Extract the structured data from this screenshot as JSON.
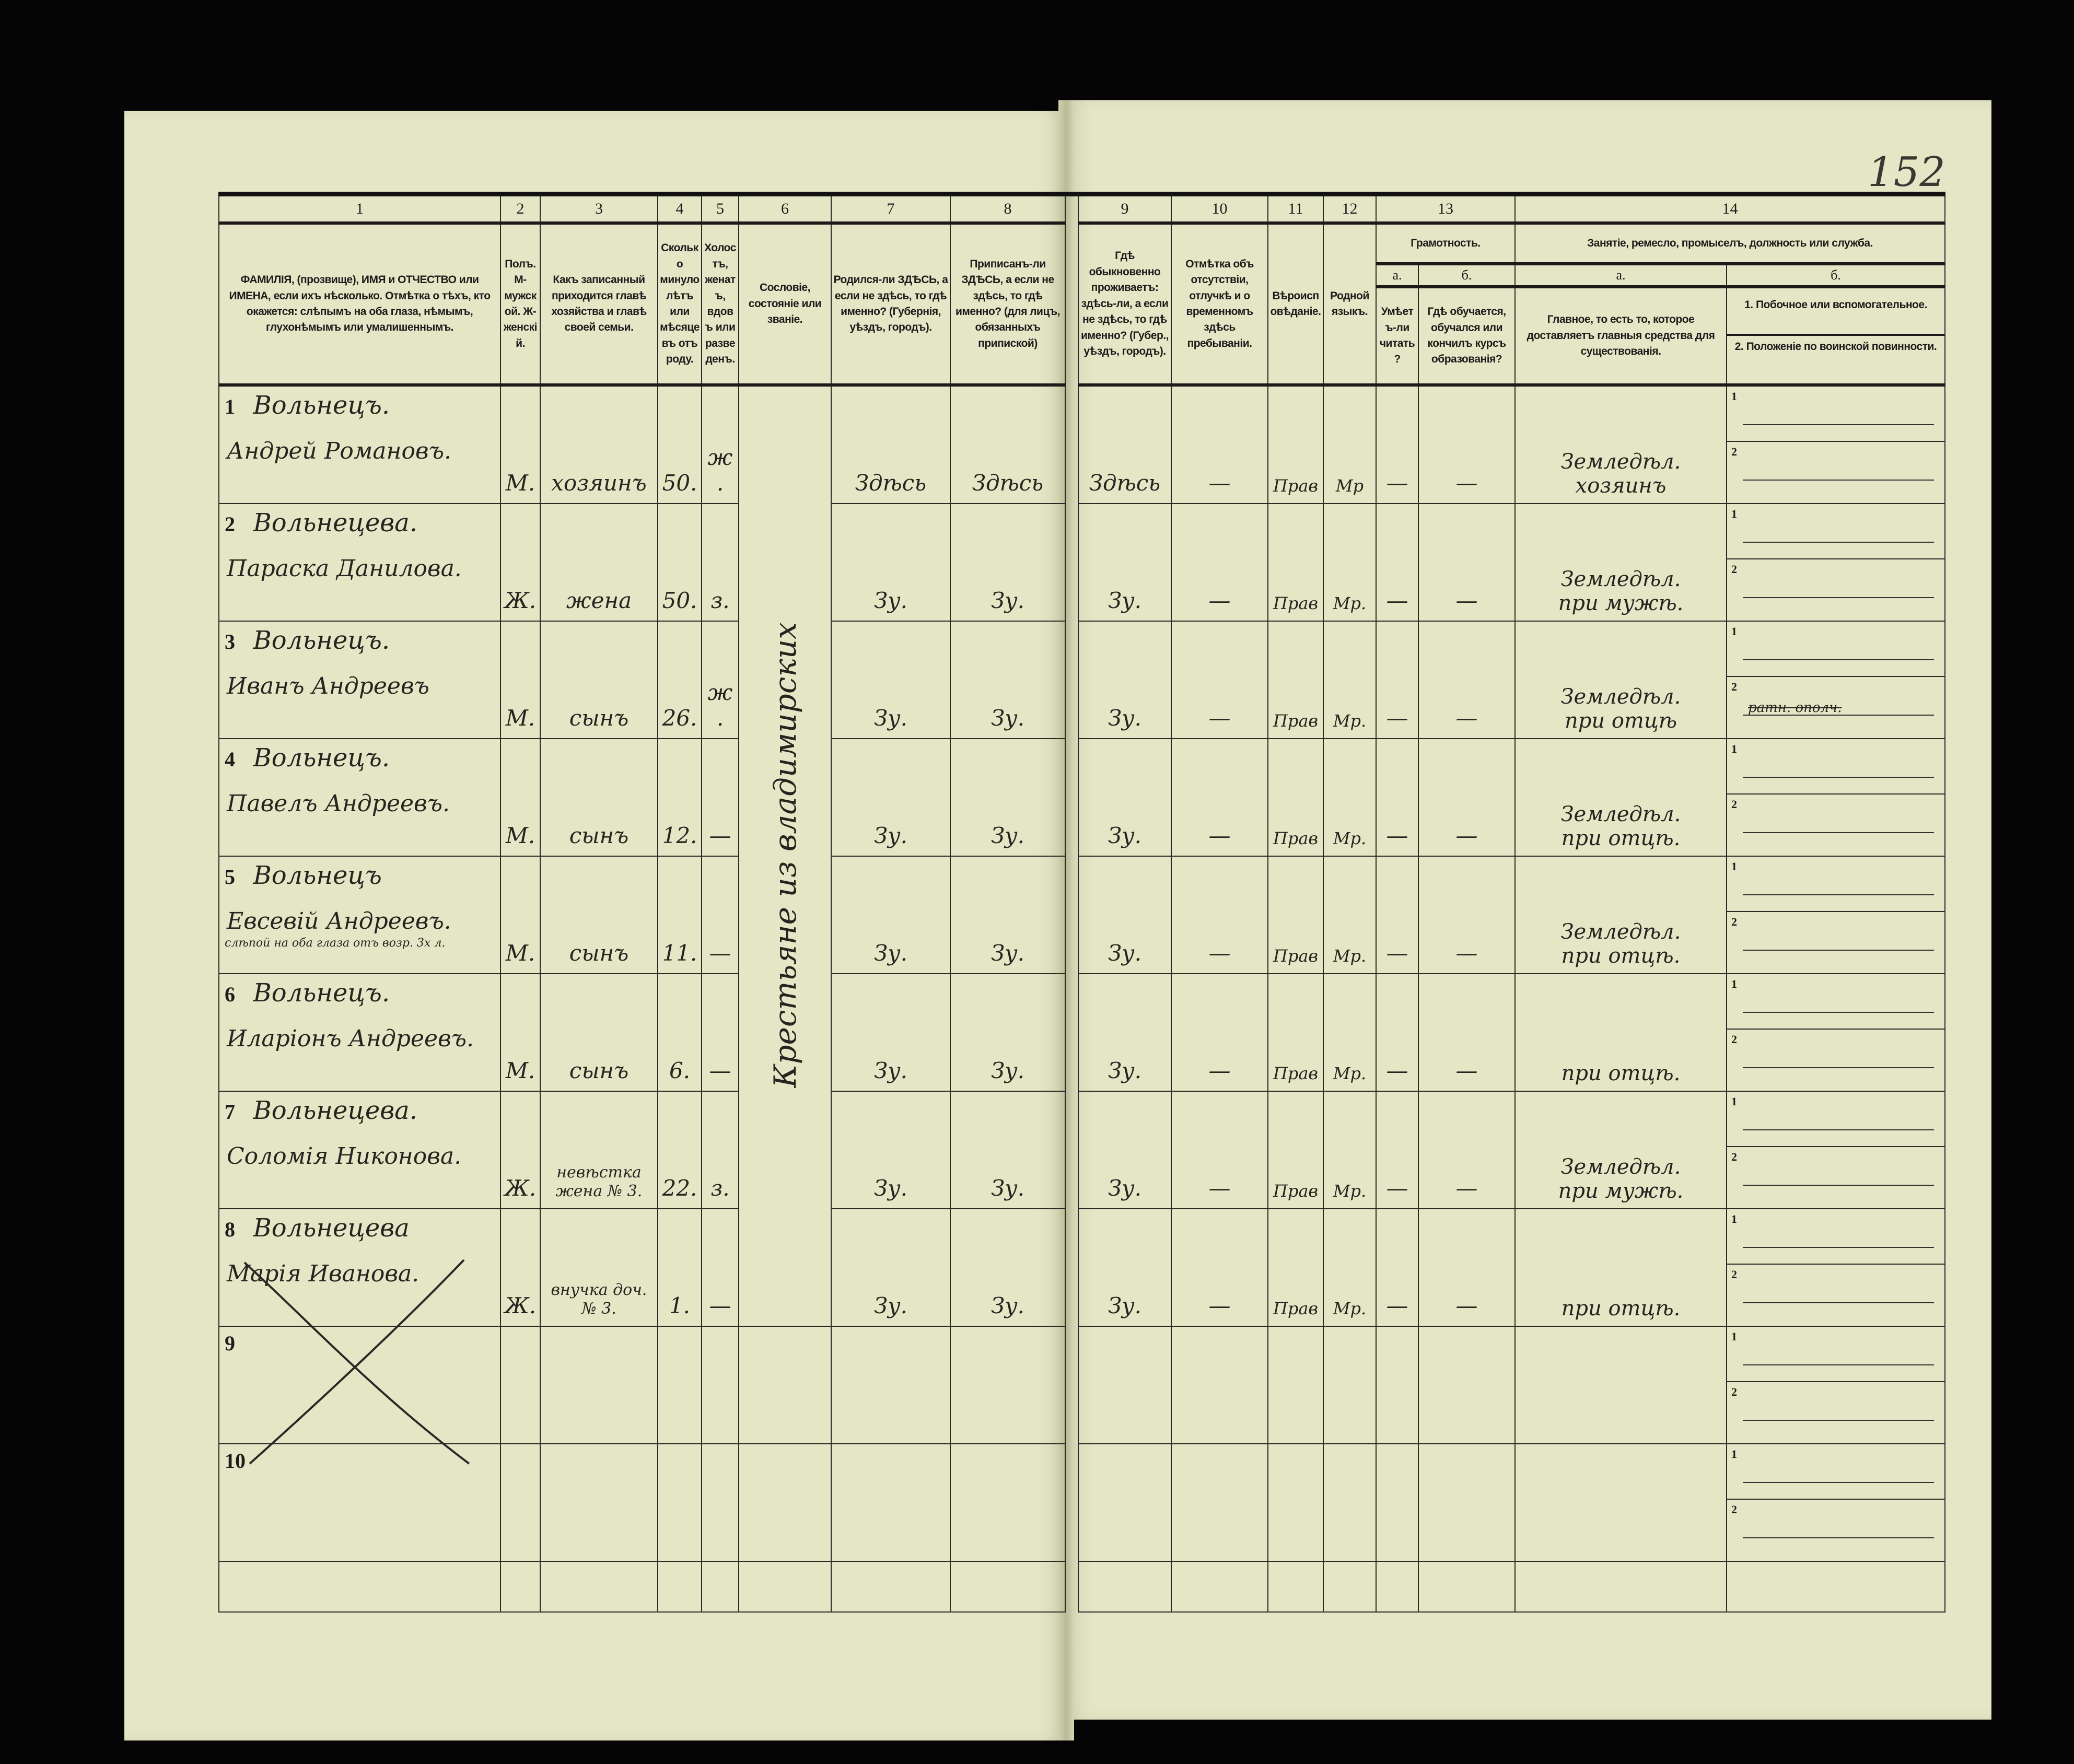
{
  "page_number": "152",
  "header": {
    "col_numbers": [
      "1",
      "2",
      "3",
      "4",
      "5",
      "6",
      "7",
      "8",
      "9",
      "10",
      "11",
      "12",
      "13",
      "14"
    ],
    "col1": "ФАМИЛІЯ, (прозвище), ИМЯ и ОТЧЕСТВО или ИМЕНА, если ихъ нѣсколько. Отмѣтка о тѣхъ, кто окажется: слѣпымъ на оба глаза, нѣмымъ, глухонѣмымъ или умалишеннымъ.",
    "col2": "Полъ. М-мужской. Ж-женскій.",
    "col3": "Какъ записанный приходится главѣ хозяйства и главѣ своей семьи.",
    "col4": "Сколько минуло лѣтъ или мѣсяцевъ отъ роду.",
    "col5": "Холостъ, женатъ, вдовъ или разведенъ.",
    "col6": "Сословіе, состояніе или званіе.",
    "col7": "Родился-ли ЗДѢСЬ, а если не здѣсь, то гдѣ именно? (Губернія, уѣздъ, городъ).",
    "col8": "Приписанъ-ли ЗДѢСЬ, а если не здѣсь, то гдѣ именно? (для лицъ, обязанныхъ припиской)",
    "col9": "Гдѣ обыкновенно проживаетъ: здѣсь-ли, а если не здѣсь, то гдѣ именно? (Губер., уѣздъ, городъ).",
    "col10": "Отмѣтка объ отсутствіи, отлучкѣ и о временномъ здѣсь пребываніи.",
    "col11": "Вѣроисповѣданіе.",
    "col12": "Родной языкъ.",
    "col13": "Грамотность.",
    "col13a_label": "а.",
    "col13a": "Умѣетъ-ли читать?",
    "col13b_label": "б.",
    "col13b": "Гдѣ обучается, обучался или кончилъ курсъ образованія?",
    "col14": "Занятіе, ремесло, промыселъ, должность или служба.",
    "col14a_label": "а.",
    "col14a": "Главное, то есть то, которое доставляетъ главныя средства для существованія.",
    "col14b_label": "б.",
    "col14b_1": "1. Побочное или вспомогательное.",
    "col14b_2": "2. Положеніе по воинской повинности."
  },
  "soslovie_all": "Крестьяне из владимирских",
  "secondary_labels": [
    "1",
    "2"
  ],
  "rows": [
    {
      "n": "1",
      "surname": "Вольнецъ.",
      "given": "Андрей Романовъ.",
      "note": "",
      "sex": "М.",
      "relation": "хозяинъ",
      "age": "50.",
      "marital": "ж.",
      "born": "Здѣсь",
      "registered": "Здѣсь",
      "resides": "Здѣсь",
      "absence": "—",
      "religion": "Прав",
      "language": "Мр",
      "literate": "—",
      "education": "—",
      "occ_main_1": "Земледѣл.",
      "occ_main_2": "хозяинъ",
      "occ_second_crossed": ""
    },
    {
      "n": "2",
      "surname": "Вольнецева.",
      "given": "Параска Данилова.",
      "note": "",
      "sex": "Ж.",
      "relation": "жена",
      "age": "50.",
      "marital": "з.",
      "born": "Зу.",
      "registered": "Зу.",
      "resides": "Зу.",
      "absence": "—",
      "religion": "Прав",
      "language": "Мр.",
      "literate": "—",
      "education": "—",
      "occ_main_1": "Земледѣл.",
      "occ_main_2": "при мужѣ.",
      "occ_second_crossed": ""
    },
    {
      "n": "3",
      "surname": "Вольнецъ.",
      "given": "Иванъ Андреевъ",
      "note": "",
      "sex": "М.",
      "relation": "сынъ",
      "age": "26.",
      "marital": "ж.",
      "born": "Зу.",
      "registered": "Зу.",
      "resides": "Зу.",
      "absence": "—",
      "religion": "Прав",
      "language": "Мр.",
      "literate": "—",
      "education": "—",
      "occ_main_1": "Земледѣл.",
      "occ_main_2": "при отцѣ",
      "occ_second_crossed": "ратн. ополч."
    },
    {
      "n": "4",
      "surname": "Вольнецъ.",
      "given": "Павелъ Андреевъ.",
      "note": "",
      "sex": "М.",
      "relation": "сынъ",
      "age": "12.",
      "marital": "—",
      "born": "Зу.",
      "registered": "Зу.",
      "resides": "Зу.",
      "absence": "—",
      "religion": "Прав",
      "language": "Мр.",
      "literate": "—",
      "education": "—",
      "occ_main_1": "Земледѣл.",
      "occ_main_2": "при отцѣ.",
      "occ_second_crossed": ""
    },
    {
      "n": "5",
      "surname": "Вольнецъ",
      "given": "Евсевій Андреевъ.",
      "note": "слѣпой на оба глаза отъ возр. 3х л.",
      "sex": "М.",
      "relation": "сынъ",
      "age": "11.",
      "marital": "—",
      "born": "Зу.",
      "registered": "Зу.",
      "resides": "Зу.",
      "absence": "—",
      "religion": "Прав",
      "language": "Мр.",
      "literate": "—",
      "education": "—",
      "occ_main_1": "Земледѣл.",
      "occ_main_2": "при отцѣ.",
      "occ_second_crossed": ""
    },
    {
      "n": "6",
      "surname": "Вольнецъ.",
      "given": "Иларіонъ Андреевъ.",
      "note": "",
      "sex": "М.",
      "relation": "сынъ",
      "age": "6.",
      "marital": "—",
      "born": "Зу.",
      "registered": "Зу.",
      "resides": "Зу.",
      "absence": "—",
      "religion": "Прав",
      "language": "Мр.",
      "literate": "—",
      "education": "—",
      "occ_main_1": "",
      "occ_main_2": "при отцѣ.",
      "occ_second_crossed": ""
    },
    {
      "n": "7",
      "surname": "Вольнецева.",
      "given": "Соломія Никонова.",
      "note": "",
      "sex": "Ж.",
      "relation": "невѣстка жена № 3.",
      "age": "22.",
      "marital": "з.",
      "born": "Зу.",
      "registered": "Зу.",
      "resides": "Зу.",
      "absence": "—",
      "religion": "Прав",
      "language": "Мр.",
      "literate": "—",
      "education": "—",
      "occ_main_1": "Земледѣл.",
      "occ_main_2": "при мужѣ.",
      "occ_second_crossed": ""
    },
    {
      "n": "8",
      "surname": "Вольнецева",
      "given": "Марія Иванова.",
      "note": "",
      "sex": "Ж.",
      "relation": "внучка доч. № 3.",
      "age": "1.",
      "marital": "—",
      "born": "Зу.",
      "registered": "Зу.",
      "resides": "Зу.",
      "absence": "—",
      "religion": "Прав",
      "language": "Мр.",
      "literate": "—",
      "education": "—",
      "occ_main_1": "",
      "occ_main_2": "при отцѣ.",
      "occ_second_crossed": ""
    },
    {
      "n": "9"
    },
    {
      "n": "10"
    }
  ],
  "colors": {
    "paper": "#e4e6c6",
    "ink": "#26241f",
    "background": "#050505"
  }
}
